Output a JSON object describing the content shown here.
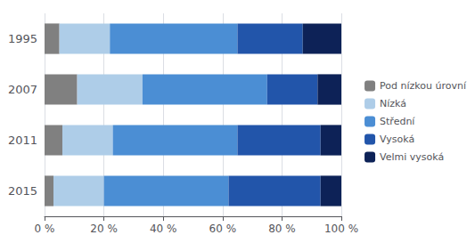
{
  "chart_data": {
    "type": "bar",
    "orientation": "horizontal",
    "stacked": true,
    "categories": [
      "1995",
      "2007",
      "2011",
      "2015"
    ],
    "series": [
      {
        "name": "Pod nízkou úrovní",
        "color": "#808080",
        "values": [
          5,
          11,
          6,
          3
        ]
      },
      {
        "name": "Nízká",
        "color": "#aecde8",
        "values": [
          17,
          22,
          17,
          17
        ]
      },
      {
        "name": "Střední",
        "color": "#4b8ed4",
        "values": [
          43,
          42,
          42,
          42
        ]
      },
      {
        "name": "Vysoká",
        "color": "#2255aa",
        "values": [
          22,
          17,
          28,
          31
        ]
      },
      {
        "name": "Velmi vysoká",
        "color": "#0d2257",
        "values": [
          13,
          8,
          7,
          7
        ]
      }
    ],
    "xlim": [
      0,
      100
    ],
    "xticks": [
      {
        "value": 0,
        "label": "0 %"
      },
      {
        "value": 20,
        "label": "20 %"
      },
      {
        "value": 40,
        "label": "40 %"
      },
      {
        "value": 60,
        "label": "60 %"
      },
      {
        "value": 80,
        "label": "80 %"
      },
      {
        "value": 100,
        "label": "100 %"
      }
    ],
    "grid": true,
    "legend": "right"
  }
}
